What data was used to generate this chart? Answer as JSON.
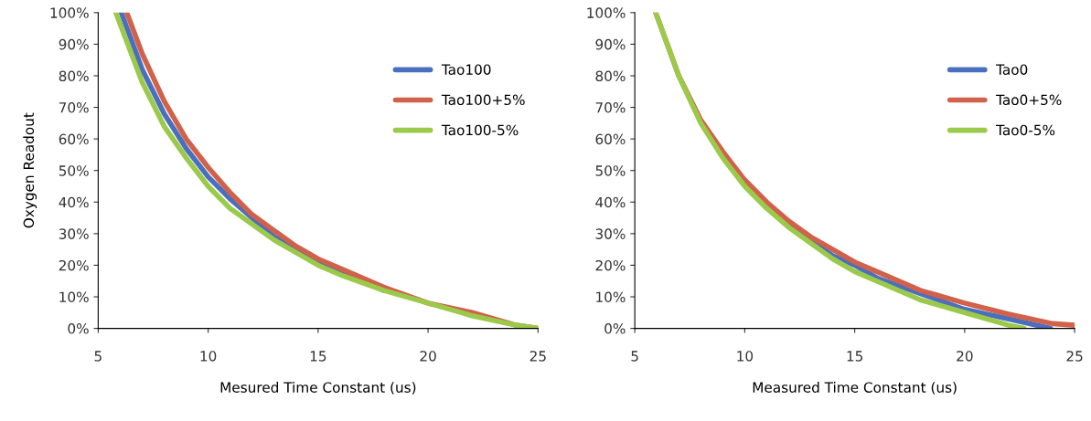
{
  "chart_data": [
    {
      "type": "line",
      "ylabel": "Oxygen Readout",
      "xlabel": "Mesured Time Constant (us)",
      "xlim": [
        5,
        25
      ],
      "xticks": [
        5,
        10,
        15,
        20,
        25
      ],
      "ylim": [
        0,
        100
      ],
      "yticks": [
        {
          "value": 0,
          "label": "0%"
        },
        {
          "value": 10,
          "label": "10%"
        },
        {
          "value": 20,
          "label": "20%"
        },
        {
          "value": 30,
          "label": "30%"
        },
        {
          "value": 40,
          "label": "40%"
        },
        {
          "value": 50,
          "label": "50%"
        },
        {
          "value": 60,
          "label": "60%"
        },
        {
          "value": 70,
          "label": "70%"
        },
        {
          "value": 80,
          "label": "80%"
        },
        {
          "value": 90,
          "label": "90%"
        },
        {
          "value": 100,
          "label": "100%"
        }
      ],
      "grid": false,
      "legend": "right",
      "marker": "none",
      "line_style": "solid",
      "series": [
        {
          "name": "Tao100",
          "color": "#4a6fbf",
          "x": [
            6.05,
            7,
            8,
            9,
            10,
            11,
            12,
            13,
            14,
            15,
            16,
            18
          ],
          "values": [
            100,
            82,
            68,
            57,
            48,
            41,
            35,
            29,
            25,
            21,
            18,
            12
          ]
        },
        {
          "name": "Tao100+5%",
          "color": "#d0614a",
          "x": [
            6.3,
            7,
            8,
            9,
            10,
            11,
            12,
            13,
            14,
            15,
            16,
            18,
            20,
            22,
            24,
            25
          ],
          "values": [
            100,
            87,
            72,
            60,
            51,
            43,
            36,
            31,
            26,
            22,
            19,
            13,
            8,
            5,
            1,
            0
          ]
        },
        {
          "name": "Tao100-5%",
          "color": "#9bc94a",
          "x": [
            5.8,
            7,
            8,
            9,
            10,
            11,
            12,
            13,
            14,
            15,
            16,
            18,
            20,
            22,
            24,
            25
          ],
          "values": [
            100,
            78,
            64,
            54,
            45,
            38,
            33,
            28,
            24,
            20,
            17,
            12,
            8,
            4,
            1,
            0
          ]
        }
      ]
    },
    {
      "type": "line",
      "xlabel": "Measured Time Constant (us)",
      "xlim": [
        5,
        25
      ],
      "xticks": [
        5,
        10,
        15,
        20,
        25
      ],
      "ylim": [
        0,
        100
      ],
      "yticks": [
        {
          "value": 0,
          "label": "0%"
        },
        {
          "value": 10,
          "label": "10%"
        },
        {
          "value": 20,
          "label": "20%"
        },
        {
          "value": 30,
          "label": "30%"
        },
        {
          "value": 40,
          "label": "40%"
        },
        {
          "value": 50,
          "label": "50%"
        },
        {
          "value": 60,
          "label": "60%"
        },
        {
          "value": 70,
          "label": "70%"
        },
        {
          "value": 80,
          "label": "80%"
        },
        {
          "value": 90,
          "label": "90%"
        },
        {
          "value": 100,
          "label": "100%"
        }
      ],
      "grid": false,
      "legend": "right",
      "marker": "none",
      "line_style": "solid",
      "series": [
        {
          "name": "Tao0",
          "color": "#4a6fbf",
          "x": [
            12,
            13,
            14,
            15,
            16,
            18,
            20,
            22,
            23.9
          ],
          "values": [
            33,
            28,
            23,
            20,
            16,
            11,
            6,
            3,
            0
          ]
        },
        {
          "name": "Tao0+5%",
          "color": "#d0614a",
          "x": [
            5.95,
            7,
            8,
            9,
            10,
            11,
            12,
            13,
            14,
            15,
            16,
            18,
            20,
            22,
            24,
            25
          ],
          "values": [
            100,
            80,
            66,
            56,
            47,
            40,
            34,
            29,
            25,
            21,
            18,
            12,
            8,
            4.5,
            1.5,
            1
          ]
        },
        {
          "name": "Tao0-5%",
          "color": "#9bc94a",
          "x": [
            5.95,
            7,
            8,
            9,
            10,
            11,
            12,
            13,
            14,
            15,
            16,
            18,
            20,
            22,
            22.7
          ],
          "values": [
            100,
            80,
            65,
            54,
            45,
            38,
            32,
            27,
            22,
            18,
            15,
            9,
            5,
            1,
            0
          ]
        }
      ]
    }
  ]
}
